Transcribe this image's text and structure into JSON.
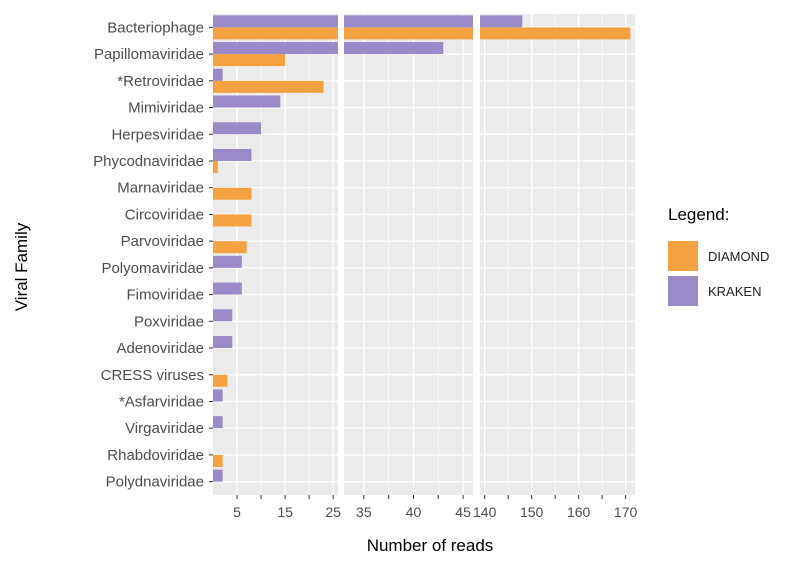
{
  "chart_data": {
    "type": "bar",
    "orientation": "horizontal",
    "ylabel": "Viral Family",
    "xlabel": "Number of reads",
    "legend_title": "Legend:",
    "categories": [
      "Bacteriophage",
      "Papillomaviridae",
      "*Retroviridae",
      "Mimiviridae",
      "Herpesviridae",
      "Phycodnaviridae",
      "Marnaviridae",
      "Circoviridae",
      "Parvoviridae",
      "Polyomaviridae",
      "Fimoviridae",
      "Poxviridae",
      "Adenoviridae",
      "CRESS viruses",
      "*Asfarviridae",
      "Virgaviridae",
      "Rhabdoviridae",
      "Polydnaviridae"
    ],
    "series": [
      {
        "name": "DIAMOND",
        "color": "#F4A142",
        "values": [
          171,
          15,
          23,
          0,
          0,
          1,
          8,
          8,
          7,
          0,
          0,
          0,
          0,
          3,
          0,
          0,
          2,
          0
        ]
      },
      {
        "name": "KRAKEN",
        "color": "#9A8BC8",
        "values": [
          148,
          43,
          2,
          14,
          10,
          8,
          0,
          0,
          0,
          6,
          6,
          4,
          4,
          0,
          2,
          2,
          0,
          2
        ]
      }
    ],
    "panels": [
      {
        "xlim": [
          0,
          26
        ],
        "ticks": [
          5,
          15,
          25
        ],
        "tick_labels": [
          "5",
          "15",
          "25"
        ]
      },
      {
        "xlim": [
          33,
          46
        ],
        "ticks": [
          35,
          40,
          45
        ],
        "tick_labels": [
          "35",
          "40",
          "45"
        ]
      },
      {
        "xlim": [
          139,
          172
        ],
        "ticks": [
          140,
          150,
          160,
          170
        ],
        "tick_labels": [
          "140",
          "150",
          "160",
          "170"
        ]
      }
    ]
  }
}
